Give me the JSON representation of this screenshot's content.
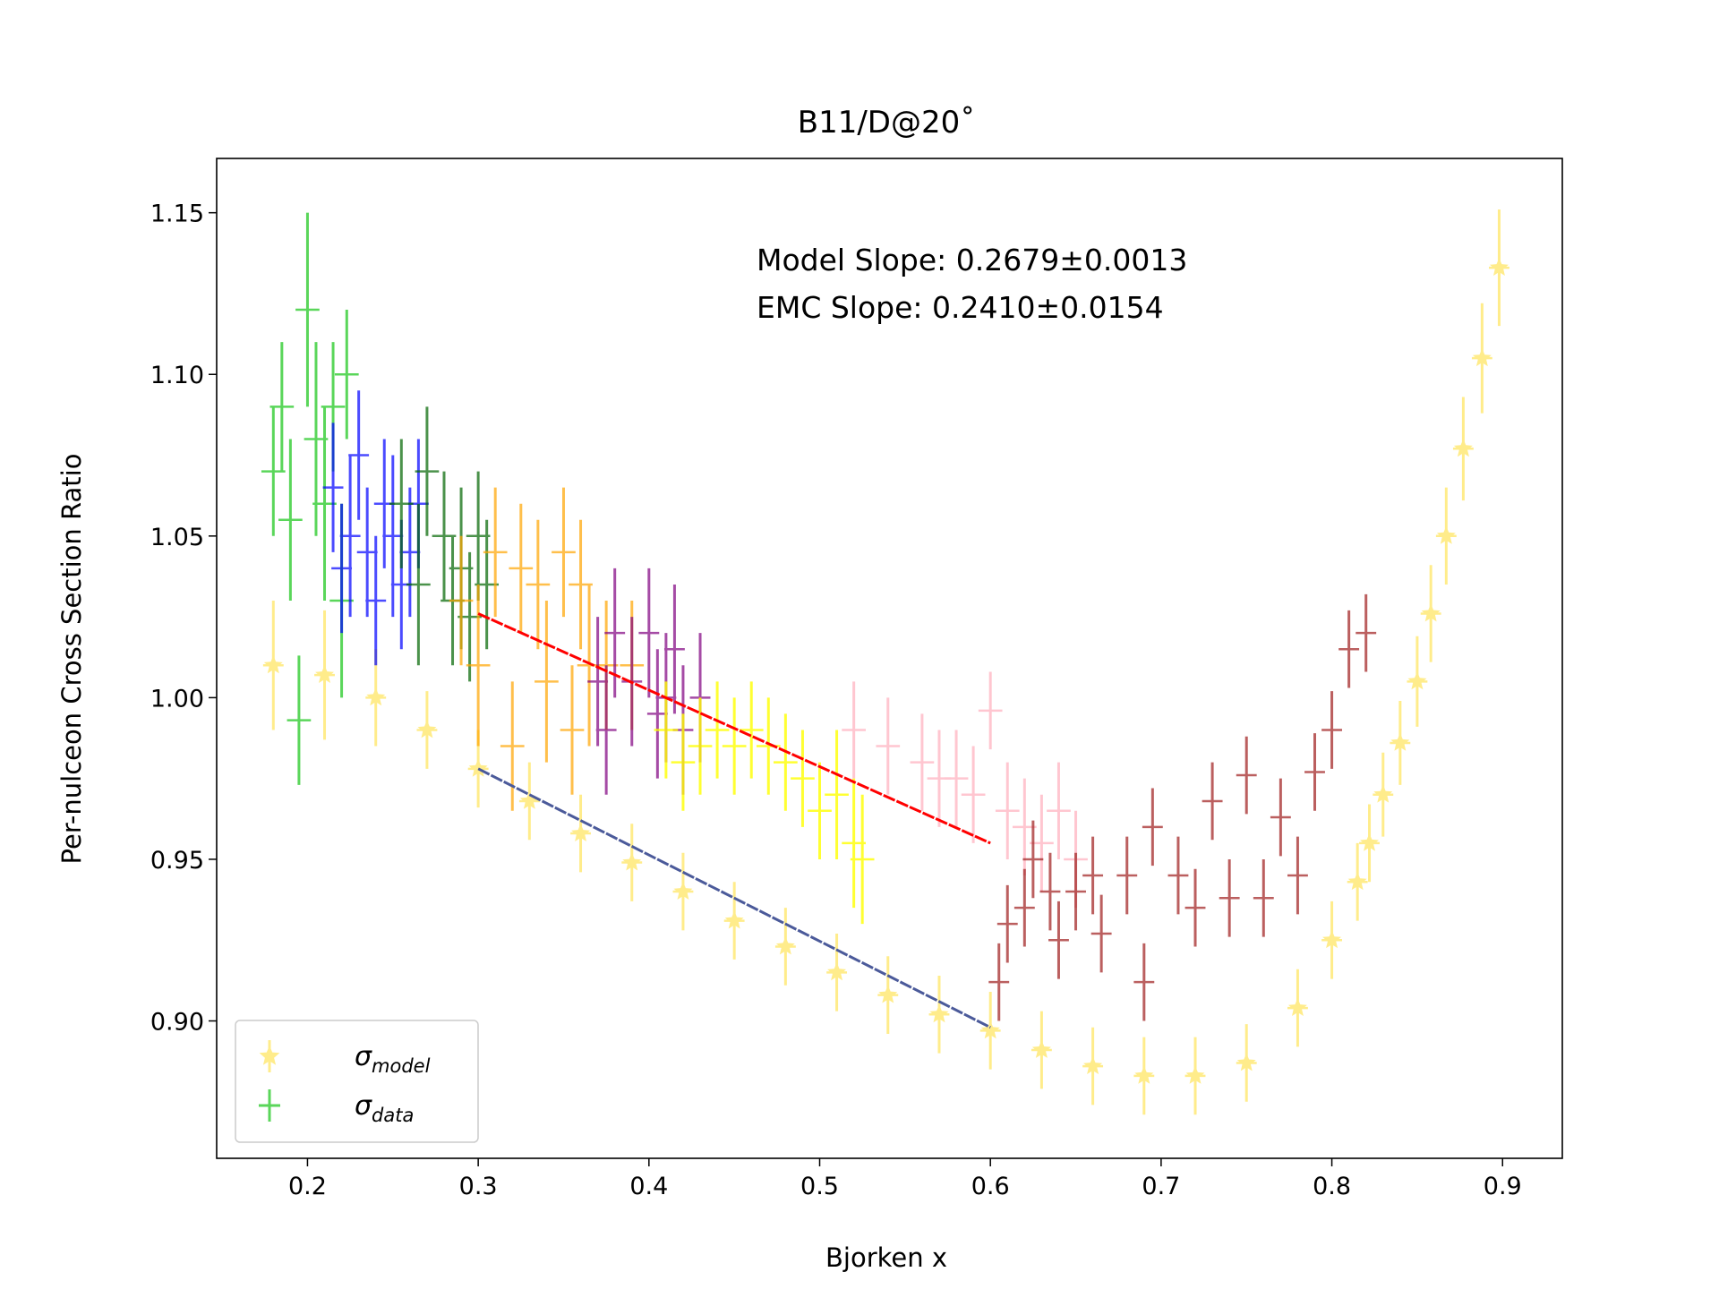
{
  "chart_data": {
    "type": "errorbar",
    "title": "B11/D@20˚",
    "xlabel": "Bjorken x",
    "ylabel": "Per-nulceon Cross Section Ratio",
    "annotations": [
      "Model Slope: 0.2679±0.0013",
      "EMC Slope: 0.2410±0.0154"
    ],
    "xlim": [
      0.1468,
      0.935
    ],
    "ylim": [
      0.8575,
      1.1668
    ],
    "xticks": [
      0.2,
      0.3,
      0.4,
      0.5,
      0.6,
      0.7,
      0.8,
      0.9
    ],
    "yticks": [
      {
        "value": 0.9,
        "label": "0.90"
      },
      {
        "value": 0.95,
        "label": "0.95"
      },
      {
        "value": 1.0,
        "label": "1.00"
      },
      {
        "value": 1.05,
        "label": "1.05"
      },
      {
        "value": 1.1,
        "label": "1.10"
      },
      {
        "value": 1.15,
        "label": "1.15"
      }
    ],
    "legend": "lower left",
    "series": [
      {
        "type": "errorbar",
        "marker": "star",
        "name": "σ",
        "name_subscript": "model",
        "color": "#ffd700",
        "alpha": 0.45,
        "xerr": 0.006,
        "x": [
          0.18,
          0.21,
          0.24,
          0.27,
          0.3,
          0.33,
          0.36,
          0.39,
          0.42,
          0.45,
          0.48,
          0.51,
          0.54,
          0.57,
          0.6,
          0.63,
          0.66,
          0.69,
          0.72,
          0.75,
          0.78,
          0.8,
          0.815,
          0.822,
          0.83,
          0.84,
          0.85,
          0.858,
          0.867,
          0.877,
          0.888,
          0.898
        ],
        "values": [
          1.01,
          1.007,
          1.0,
          0.99,
          0.978,
          0.968,
          0.958,
          0.949,
          0.94,
          0.931,
          0.923,
          0.915,
          0.908,
          0.902,
          0.897,
          0.891,
          0.886,
          0.883,
          0.883,
          0.887,
          0.904,
          0.925,
          0.943,
          0.955,
          0.97,
          0.986,
          1.005,
          1.026,
          1.05,
          1.077,
          1.105,
          1.133
        ],
        "errors": [
          0.02,
          0.02,
          0.015,
          0.012,
          0.012,
          0.012,
          0.012,
          0.012,
          0.012,
          0.012,
          0.012,
          0.012,
          0.012,
          0.012,
          0.012,
          0.012,
          0.012,
          0.012,
          0.012,
          0.012,
          0.012,
          0.012,
          0.012,
          0.012,
          0.013,
          0.013,
          0.014,
          0.015,
          0.015,
          0.016,
          0.017,
          0.018
        ]
      },
      {
        "type": "errorbar",
        "name": "σ",
        "name_subscript": "data",
        "color": "#32cd32",
        "alpha": 0.8,
        "xerr": 0.007,
        "x": [
          0.18,
          0.185,
          0.19,
          0.195,
          0.2,
          0.205,
          0.21,
          0.215,
          0.22,
          0.223
        ],
        "values": [
          1.07,
          1.09,
          1.055,
          0.993,
          1.12,
          1.08,
          1.06,
          1.09,
          1.03,
          1.1
        ],
        "errors": [
          0.02,
          0.02,
          0.025,
          0.02,
          0.03,
          0.03,
          0.03,
          0.02,
          0.03,
          0.02
        ]
      },
      {
        "type": "errorbar",
        "color": "#0000ff",
        "alpha": 0.7,
        "xerr": 0.006,
        "x": [
          0.215,
          0.22,
          0.225,
          0.23,
          0.235,
          0.24,
          0.245,
          0.25,
          0.255,
          0.26,
          0.265
        ],
        "values": [
          1.065,
          1.04,
          1.05,
          1.075,
          1.045,
          1.03,
          1.06,
          1.05,
          1.035,
          1.045,
          1.06
        ],
        "errors": [
          0.02,
          0.02,
          0.025,
          0.02,
          0.02,
          0.02,
          0.02,
          0.025,
          0.02,
          0.02,
          0.02
        ]
      },
      {
        "type": "errorbar",
        "color": "#006400",
        "alpha": 0.7,
        "xerr": 0.007,
        "x": [
          0.255,
          0.265,
          0.27,
          0.28,
          0.285,
          0.29,
          0.295,
          0.3,
          0.305
        ],
        "values": [
          1.06,
          1.035,
          1.07,
          1.05,
          1.03,
          1.04,
          1.025,
          1.05,
          1.035
        ],
        "errors": [
          0.02,
          0.025,
          0.02,
          0.02,
          0.02,
          0.025,
          0.02,
          0.02,
          0.02
        ]
      },
      {
        "type": "errorbar",
        "color": "#ffa500",
        "alpha": 0.7,
        "xerr": 0.007,
        "x": [
          0.29,
          0.3,
          0.31,
          0.32,
          0.325,
          0.335,
          0.34,
          0.35,
          0.355,
          0.36,
          0.365,
          0.375,
          0.39
        ],
        "values": [
          1.03,
          1.01,
          1.045,
          0.985,
          1.04,
          1.035,
          1.005,
          1.045,
          0.99,
          1.035,
          1.01,
          1.01,
          1.01
        ],
        "errors": [
          0.02,
          0.025,
          0.02,
          0.02,
          0.02,
          0.02,
          0.025,
          0.02,
          0.02,
          0.02,
          0.025,
          0.02,
          0.02
        ]
      },
      {
        "type": "errorbar",
        "color": "#800080",
        "alpha": 0.7,
        "xerr": 0.006,
        "x": [
          0.37,
          0.375,
          0.38,
          0.39,
          0.4,
          0.405,
          0.41,
          0.415,
          0.42,
          0.43
        ],
        "values": [
          1.005,
          0.99,
          1.02,
          1.005,
          1.02,
          0.995,
          1.0,
          1.015,
          0.99,
          1.0
        ],
        "errors": [
          0.02,
          0.02,
          0.02,
          0.02,
          0.02,
          0.02,
          0.02,
          0.02,
          0.02,
          0.02
        ]
      },
      {
        "type": "errorbar",
        "color": "#ffff00",
        "alpha": 0.8,
        "xerr": 0.007,
        "x": [
          0.41,
          0.42,
          0.43,
          0.44,
          0.45,
          0.46,
          0.47,
          0.48,
          0.49,
          0.5,
          0.51,
          0.52,
          0.525
        ],
        "values": [
          0.99,
          0.98,
          0.985,
          0.99,
          0.985,
          0.99,
          0.985,
          0.98,
          0.975,
          0.965,
          0.97,
          0.955,
          0.95
        ],
        "errors": [
          0.015,
          0.015,
          0.015,
          0.015,
          0.015,
          0.015,
          0.015,
          0.015,
          0.015,
          0.015,
          0.02,
          0.02,
          0.02
        ]
      },
      {
        "type": "errorbar",
        "color": "#ffc0cb",
        "alpha": 0.9,
        "xerr": 0.007,
        "x": [
          0.52,
          0.54,
          0.56,
          0.57,
          0.58,
          0.59,
          0.6,
          0.61,
          0.62,
          0.63,
          0.64,
          0.65
        ],
        "values": [
          0.99,
          0.985,
          0.98,
          0.975,
          0.975,
          0.97,
          0.996,
          0.965,
          0.96,
          0.955,
          0.965,
          0.95
        ],
        "errors": [
          0.015,
          0.015,
          0.015,
          0.015,
          0.015,
          0.015,
          0.012,
          0.015,
          0.015,
          0.015,
          0.015,
          0.015
        ]
      },
      {
        "type": "errorbar",
        "color": "#a52a2a",
        "alpha": 0.75,
        "xerr": 0.006,
        "x": [
          0.605,
          0.61,
          0.62,
          0.625,
          0.635,
          0.64,
          0.65,
          0.66,
          0.665,
          0.68,
          0.69,
          0.695,
          0.71,
          0.72,
          0.73,
          0.74,
          0.75,
          0.76,
          0.77,
          0.78,
          0.79,
          0.8,
          0.81,
          0.82
        ],
        "values": [
          0.912,
          0.93,
          0.935,
          0.95,
          0.94,
          0.925,
          0.94,
          0.945,
          0.927,
          0.945,
          0.912,
          0.96,
          0.945,
          0.935,
          0.968,
          0.938,
          0.976,
          0.938,
          0.963,
          0.945,
          0.977,
          0.99,
          1.015,
          1.02
        ],
        "errors": [
          0.012,
          0.012,
          0.012,
          0.012,
          0.012,
          0.012,
          0.012,
          0.012,
          0.012,
          0.012,
          0.012,
          0.012,
          0.012,
          0.012,
          0.012,
          0.012,
          0.012,
          0.012,
          0.012,
          0.012,
          0.012,
          0.012,
          0.012,
          0.012
        ]
      },
      {
        "type": "line",
        "color": "#ff0000",
        "width": 3,
        "x": [
          0.3,
          0.6
        ],
        "values": [
          1.026,
          0.955
        ]
      },
      {
        "type": "line",
        "color": "#4b5a9a",
        "width": 3,
        "x": [
          0.3,
          0.6
        ],
        "values": [
          0.978,
          0.898
        ]
      }
    ]
  }
}
